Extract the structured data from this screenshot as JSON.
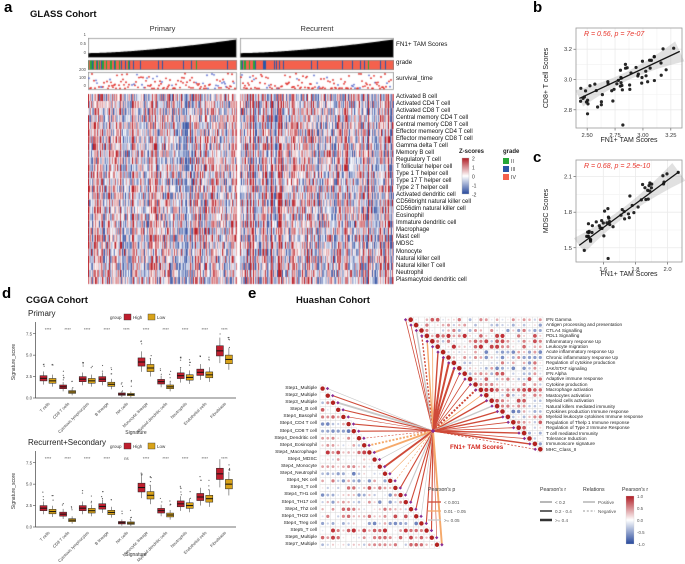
{
  "panel_a": {
    "label": "a",
    "title": "GLASS Cohort",
    "column_groups": [
      "Primary",
      "Recurrent"
    ],
    "tracks": [
      {
        "id": "fn1",
        "label": "FN1+ TAM Scores",
        "ticks": [
          "1",
          "0.5",
          "0"
        ]
      },
      {
        "id": "grade",
        "label": "grade",
        "ticks": []
      },
      {
        "id": "survival",
        "label": "survival_time",
        "ticks": [
          "200",
          "100",
          "0"
        ]
      }
    ],
    "rows": [
      "Activated B cell",
      "Activated CD4 T cell",
      "Activated CD8 T cell",
      "Central memory CD4 T cell",
      "Central memory CD8 T cell",
      "Effector memeory CD4 T cell",
      "Effector memeory CD8 T cell",
      "Gamma delta T cell",
      "Memory B cell",
      "Regulatory T cell",
      "T follicular helper cell",
      "Type 1 T helper cell",
      "Type 17 T helper cell",
      "Type 2 T helper cell",
      "Activated dendritic cell",
      "CD56bright natural killer cell",
      "CD56dim natural killer cell",
      "Eosinophil",
      "Immature dendritic cell",
      "Macrophage",
      "Mast cell",
      "MDSC",
      "Monocyte",
      "Natural killer cell",
      "Natural killer T cell",
      "Neutrophil",
      "Plasmacytoid dendritic cell"
    ],
    "zscore_legend": {
      "title": "Z-scores",
      "ticks": [
        "2",
        "1",
        "0",
        "-1",
        "-2"
      ]
    },
    "grade_legend": {
      "title": "grade",
      "items": [
        {
          "label": "II",
          "color": "#27a737"
        },
        {
          "label": "III",
          "color": "#2b56a7"
        },
        {
          "label": "IV",
          "color": "#f4614d"
        }
      ]
    }
  },
  "panel_b": {
    "label": "b",
    "annotation": "R = 0.56, p = 7e-07",
    "xlabel": "FN1+ TAM Scores",
    "ylabel": "CD8+ T cell Scores",
    "x_ticks": [
      "2.50",
      "2.75",
      "3.00",
      "3.25"
    ],
    "y_ticks": [
      "2.8",
      "3.0",
      "3.2"
    ],
    "stats": {
      "R": "0.56",
      "p": "7e-07"
    }
  },
  "panel_c": {
    "label": "c",
    "annotation": "R = 0.68, p = 2.5e-10",
    "xlabel": "FN1+ TAM Scores",
    "ylabel": "MDSC Scores",
    "x_ticks": [
      "1.6",
      "1.8",
      "2.0"
    ],
    "y_ticks": [
      "1.5",
      "1.8",
      "2.1"
    ],
    "stats": {
      "R": "0.68",
      "p": "2.5e-10"
    }
  },
  "panel_d": {
    "label": "d",
    "title": "CGGA Cohort",
    "legend": {
      "title": "group",
      "items": [
        {
          "label": "High",
          "color": "#bf1e2e"
        },
        {
          "label": "Low",
          "color": "#d8a219"
        }
      ]
    },
    "ylabel": "Signature_score",
    "y_ticks": [
      "0.0",
      "2.5",
      "5.0",
      "7.5"
    ],
    "xlabel": "Signature",
    "categories": [
      "T cells",
      "CD8 T cells",
      "Cytotoxic lymphocytes",
      "B lineage",
      "NK cells",
      "Monocytic lineage",
      "Myeloid dendritic cells",
      "Neutrophils",
      "Endothelial cells",
      "Fibroblasts"
    ],
    "subpanels": [
      {
        "subtitle": "Primary",
        "significance": [
          "****",
          "****",
          "****",
          "****",
          "****",
          "****",
          "****",
          "****",
          "****",
          "****"
        ],
        "high_medians": [
          2.3,
          1.3,
          2.2,
          2.2,
          0.45,
          4.2,
          1.9,
          2.6,
          3.0,
          5.5
        ],
        "low_medians": [
          2.0,
          0.7,
          2.0,
          1.6,
          0.4,
          3.5,
          1.3,
          2.4,
          2.7,
          4.5
        ]
      },
      {
        "subtitle": "Recurrent+Secondary",
        "significance": [
          "****",
          "****",
          "****",
          "****",
          "ns",
          "****",
          "****",
          "****",
          "****",
          "****"
        ],
        "high_medians": [
          2.2,
          1.5,
          2.2,
          2.4,
          0.5,
          4.6,
          1.9,
          2.7,
          3.5,
          6.2
        ],
        "low_medians": [
          1.8,
          0.8,
          1.9,
          1.7,
          0.45,
          3.7,
          1.4,
          2.5,
          3.3,
          5.0
        ]
      }
    ]
  },
  "panel_e": {
    "label": "e",
    "title": "Huashan Cohort",
    "hub_label": "FN1+ TAM Scores",
    "left_rows": [
      "Step1_Multiple",
      "Step2_Multiple",
      "Step3_Multiple",
      "Step4_B cell",
      "Step4_Basophil",
      "Step4_CD4 T cell",
      "Step4_CD8 T cell",
      "Step4_Dendritic cell",
      "Step4_Eosinophil",
      "Step4_Macrophage",
      "Step4_MDSC",
      "Step4_Monocyte",
      "Step4_Neutrophil",
      "Step4_NK cell",
      "Step4_T cell",
      "Step4_TH1 cell",
      "Step4_TH17 cell",
      "Step4_Th2 cell",
      "Step4_TH22 cell",
      "Step4_Treg cell",
      "Step5_T cell",
      "Step6_Multiple",
      "Step7_Multiple"
    ],
    "right_rows": [
      "IFN Gamma",
      "Antigen processing and presentation",
      "CTLA4 Signalling",
      "PDL1 Signalling",
      "Inflammatory response Up",
      "Leukocyte migration",
      "Acute inflammatory response Up",
      "Chronic inflammatory response Up",
      "Regulation of cytokine production",
      "JAK/STAT signaling",
      "IFN Alpha",
      "Adaptive immune response",
      "Cytokine production",
      "Macrophage activation",
      "Mastocytes activation",
      "Myeloid cells activation",
      "Natural killers mediated immunity",
      "Cytokines production Immune response",
      "Myeloid leukocyte cytokines Immune response",
      "Regulation of Thelp 1 Immune response",
      "Regulation of Type 2 Immune Response",
      "T cell mediated Immunity",
      "Tolerance Induction",
      "Immunoscore signature",
      "MHC_Class_II"
    ],
    "legend_p": {
      "title": "Pearson's p",
      "items": [
        {
          "label": "< 0.001",
          "color": "#cf4a38"
        },
        {
          "label": "0.01 - 0.05",
          "color": "#f5a96b"
        },
        {
          "label": ">= 0.05",
          "color": "#c8c8c8"
        }
      ]
    },
    "legend_r_width": {
      "title": "Pearson's r",
      "items": [
        {
          "label": "< 0.2",
          "width": 0.7
        },
        {
          "label": "0.2 - 0.4",
          "width": 1.5
        },
        {
          "label": ">= 0.4",
          "width": 2.5
        }
      ]
    },
    "legend_relations": {
      "title": "Relations",
      "items": [
        {
          "label": "Positive",
          "dash": false
        },
        {
          "label": "Negative",
          "dash": true
        }
      ]
    },
    "legend_r_color": {
      "title": "Pearson's r",
      "ticks": [
        "1.0",
        "0.5",
        "0.0",
        "-0.5",
        "-1.0"
      ]
    }
  }
}
